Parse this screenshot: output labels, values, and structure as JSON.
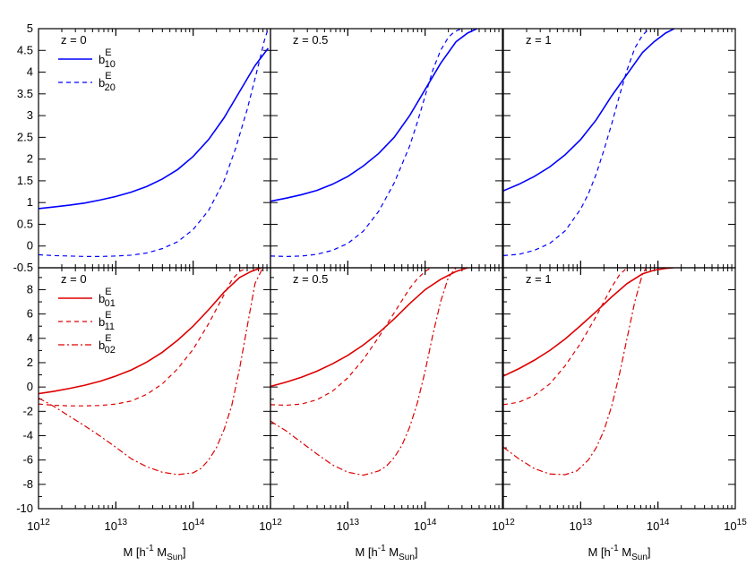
{
  "x_axis": {
    "label_main": "M [h",
    "label_exp": "-1",
    "label_mid": " M",
    "label_sub": "Sun",
    "label_end": "]",
    "tick_base": "10",
    "tick_exponents": [
      "12",
      "13",
      "14",
      "15"
    ]
  },
  "colors": {
    "top": "#0000ff",
    "bottom": "#dd0000"
  },
  "chart_data": [
    {
      "type": "line",
      "row": "top",
      "panels": [
        {
          "title": "z = 0",
          "xlim": [
            12,
            15
          ],
          "ylim": [
            -0.5,
            5
          ],
          "yticks": [
            "5",
            "4.5",
            "4",
            "3.5",
            "3",
            "2.5",
            "2",
            "1.5",
            "1",
            "0.5",
            "0",
            "-0.5"
          ],
          "series": [
            {
              "base": "b",
              "sup": "E",
              "sub": "10",
              "style": "solid",
              "x": [
                12,
                12.2,
                12.4,
                12.6,
                12.8,
                13,
                13.2,
                13.4,
                13.6,
                13.8,
                14,
                14.2,
                14.4,
                14.6,
                14.8,
                14.97
              ],
              "y": [
                0.86,
                0.9,
                0.94,
                0.99,
                1.06,
                1.14,
                1.24,
                1.37,
                1.54,
                1.76,
                2.06,
                2.45,
                2.95,
                3.55,
                4.15,
                4.55
              ]
            },
            {
              "base": "b",
              "sup": "E",
              "sub": "20",
              "style": "dashed",
              "x": [
                12,
                12.2,
                12.4,
                12.6,
                12.8,
                13,
                13.2,
                13.4,
                13.6,
                13.8,
                14,
                14.2,
                14.4,
                14.55,
                14.7,
                14.8,
                14.87,
                14.92,
                14.97
              ],
              "y": [
                -0.2,
                -0.22,
                -0.23,
                -0.24,
                -0.24,
                -0.23,
                -0.21,
                -0.16,
                -0.06,
                0.1,
                0.38,
                0.82,
                1.5,
                2.25,
                3.15,
                3.85,
                4.35,
                4.72,
                5.0
              ]
            }
          ]
        },
        {
          "title": "z = 0.5",
          "xlim": [
            12,
            15
          ],
          "ylim": [
            -0.5,
            5
          ],
          "series": [
            {
              "style": "solid",
              "x": [
                12,
                12.2,
                12.4,
                12.6,
                12.8,
                13,
                13.2,
                13.4,
                13.6,
                13.8,
                14,
                14.2,
                14.4,
                14.55,
                14.67
              ],
              "y": [
                1.03,
                1.1,
                1.18,
                1.28,
                1.42,
                1.6,
                1.84,
                2.13,
                2.5,
                3.0,
                3.6,
                4.2,
                4.7,
                4.9,
                5.0
              ]
            },
            {
              "style": "dashed",
              "x": [
                12,
                12.2,
                12.4,
                12.6,
                12.8,
                13,
                13.2,
                13.4,
                13.6,
                13.8,
                13.9,
                14,
                14.1,
                14.2,
                14.3,
                14.38,
                14.47
              ],
              "y": [
                -0.23,
                -0.24,
                -0.23,
                -0.19,
                -0.1,
                0.06,
                0.34,
                0.8,
                1.45,
                2.3,
                2.85,
                3.45,
                4.05,
                4.5,
                4.8,
                4.93,
                5.0
              ]
            }
          ]
        },
        {
          "title": "z = 1",
          "xlim": [
            12,
            15
          ],
          "ylim": [
            -0.5,
            5
          ],
          "series": [
            {
              "style": "solid",
              "x": [
                12,
                12.2,
                12.4,
                12.6,
                12.8,
                13,
                13.2,
                13.4,
                13.6,
                13.8,
                13.95,
                14.1,
                14.21
              ],
              "y": [
                1.27,
                1.42,
                1.6,
                1.82,
                2.1,
                2.45,
                2.9,
                3.45,
                3.95,
                4.45,
                4.7,
                4.9,
                5.0
              ]
            },
            {
              "style": "dashed",
              "x": [
                12,
                12.2,
                12.4,
                12.6,
                12.8,
                13,
                13.1,
                13.2,
                13.3,
                13.4,
                13.5,
                13.6,
                13.7,
                13.8,
                13.89
              ],
              "y": [
                -0.22,
                -0.19,
                -0.1,
                0.06,
                0.35,
                0.85,
                1.2,
                1.65,
                2.2,
                2.8,
                3.45,
                4.05,
                4.55,
                4.85,
                5.0
              ]
            }
          ]
        }
      ]
    },
    {
      "type": "line",
      "row": "bottom",
      "panels": [
        {
          "title": "z = 0",
          "xlim": [
            12,
            15
          ],
          "ylim": [
            -10,
            9.8
          ],
          "yticks": [
            "8",
            "6",
            "4",
            "2",
            "0",
            "-2",
            "-4",
            "-6",
            "-8",
            "-10"
          ],
          "series": [
            {
              "base": "b",
              "sup": "E",
              "sub": "01",
              "style": "solid",
              "x": [
                12,
                12.2,
                12.4,
                12.6,
                12.8,
                13,
                13.2,
                13.4,
                13.6,
                13.8,
                14,
                14.2,
                14.4,
                14.6,
                14.75,
                14.88
              ],
              "y": [
                -0.55,
                -0.35,
                -0.12,
                0.15,
                0.48,
                0.9,
                1.4,
                2.05,
                2.85,
                3.85,
                5.0,
                6.35,
                7.8,
                9.0,
                9.5,
                9.8
              ]
            },
            {
              "base": "b",
              "sup": "E",
              "sub": "11",
              "style": "dashed",
              "x": [
                12,
                12.2,
                12.4,
                12.6,
                12.8,
                13,
                13.2,
                13.4,
                13.6,
                13.8,
                14,
                14.2,
                14.35,
                14.5,
                14.6,
                14.7
              ],
              "y": [
                -1.4,
                -1.5,
                -1.55,
                -1.55,
                -1.52,
                -1.4,
                -1.15,
                -0.6,
                0.25,
                1.5,
                3.1,
                5.2,
                7.0,
                8.8,
                9.5,
                9.8
              ]
            },
            {
              "base": "b",
              "sup": "E",
              "sub": "02",
              "style": "dashdot",
              "x": [
                12,
                12.2,
                12.4,
                12.6,
                12.8,
                13,
                13.2,
                13.4,
                13.6,
                13.8,
                14,
                14.1,
                14.2,
                14.3,
                14.4,
                14.5,
                14.6,
                14.7,
                14.8,
                14.9
              ],
              "y": [
                -0.9,
                -1.6,
                -2.4,
                -3.2,
                -4.05,
                -4.95,
                -5.9,
                -6.55,
                -7.0,
                -7.2,
                -7.05,
                -6.7,
                -6.0,
                -5.0,
                -3.5,
                -1.5,
                1.5,
                5.0,
                8.5,
                9.8
              ]
            }
          ]
        },
        {
          "title": "z = 0.5",
          "xlim": [
            12,
            15
          ],
          "ylim": [
            -10,
            9.8
          ],
          "series": [
            {
              "style": "solid",
              "x": [
                12,
                12.2,
                12.4,
                12.6,
                12.8,
                13,
                13.2,
                13.4,
                13.6,
                13.8,
                14,
                14.2,
                14.4,
                14.55
              ],
              "y": [
                0.05,
                0.4,
                0.8,
                1.3,
                1.9,
                2.6,
                3.45,
                4.45,
                5.6,
                6.85,
                8.0,
                8.85,
                9.5,
                9.8
              ]
            },
            {
              "style": "dashed",
              "x": [
                12,
                12.2,
                12.4,
                12.6,
                12.8,
                13,
                13.2,
                13.4,
                13.6,
                13.8,
                13.9,
                14,
                14.05,
                14.1
              ],
              "y": [
                -1.45,
                -1.5,
                -1.4,
                -1.05,
                -0.35,
                0.75,
                2.25,
                4.1,
                6.1,
                8.1,
                8.9,
                9.5,
                9.7,
                9.8
              ]
            },
            {
              "style": "dashdot",
              "x": [
                12,
                12.2,
                12.4,
                12.6,
                12.8,
                13,
                13.2,
                13.4,
                13.5,
                13.6,
                13.7,
                13.8,
                13.9,
                14,
                14.1,
                14.2,
                14.3,
                14.4
              ],
              "y": [
                -2.8,
                -3.6,
                -4.55,
                -5.5,
                -6.4,
                -7.0,
                -7.25,
                -6.9,
                -6.5,
                -5.8,
                -4.8,
                -3.3,
                -1.3,
                1.3,
                4.3,
                7.0,
                9.0,
                9.8
              ]
            }
          ]
        },
        {
          "title": "z = 1",
          "xlim": [
            12,
            15
          ],
          "ylim": [
            -10,
            9.8
          ],
          "series": [
            {
              "style": "solid",
              "x": [
                12,
                12.2,
                12.4,
                12.6,
                12.8,
                13,
                13.2,
                13.4,
                13.6,
                13.8,
                13.95,
                14.1,
                14.2
              ],
              "y": [
                0.9,
                1.5,
                2.2,
                3.0,
                3.95,
                5.05,
                6.2,
                7.4,
                8.5,
                9.3,
                9.6,
                9.75,
                9.8
              ]
            },
            {
              "style": "dashed",
              "x": [
                12,
                12.2,
                12.4,
                12.6,
                12.8,
                13,
                13.2,
                13.3,
                13.4,
                13.5,
                13.6
              ],
              "y": [
                -1.45,
                -1.25,
                -0.7,
                0.25,
                1.75,
                3.6,
                5.8,
                7.0,
                8.2,
                9.2,
                9.8
              ]
            },
            {
              "style": "dashdot",
              "x": [
                12,
                12.2,
                12.4,
                12.6,
                12.8,
                12.95,
                13.1,
                13.2,
                13.3,
                13.4,
                13.5,
                13.6,
                13.7,
                13.8,
                13.85
              ],
              "y": [
                -4.95,
                -5.9,
                -6.7,
                -7.15,
                -7.2,
                -6.9,
                -6.0,
                -5.0,
                -3.6,
                -1.6,
                1.0,
                4.0,
                7.0,
                9.3,
                9.8
              ]
            }
          ]
        }
      ]
    }
  ]
}
